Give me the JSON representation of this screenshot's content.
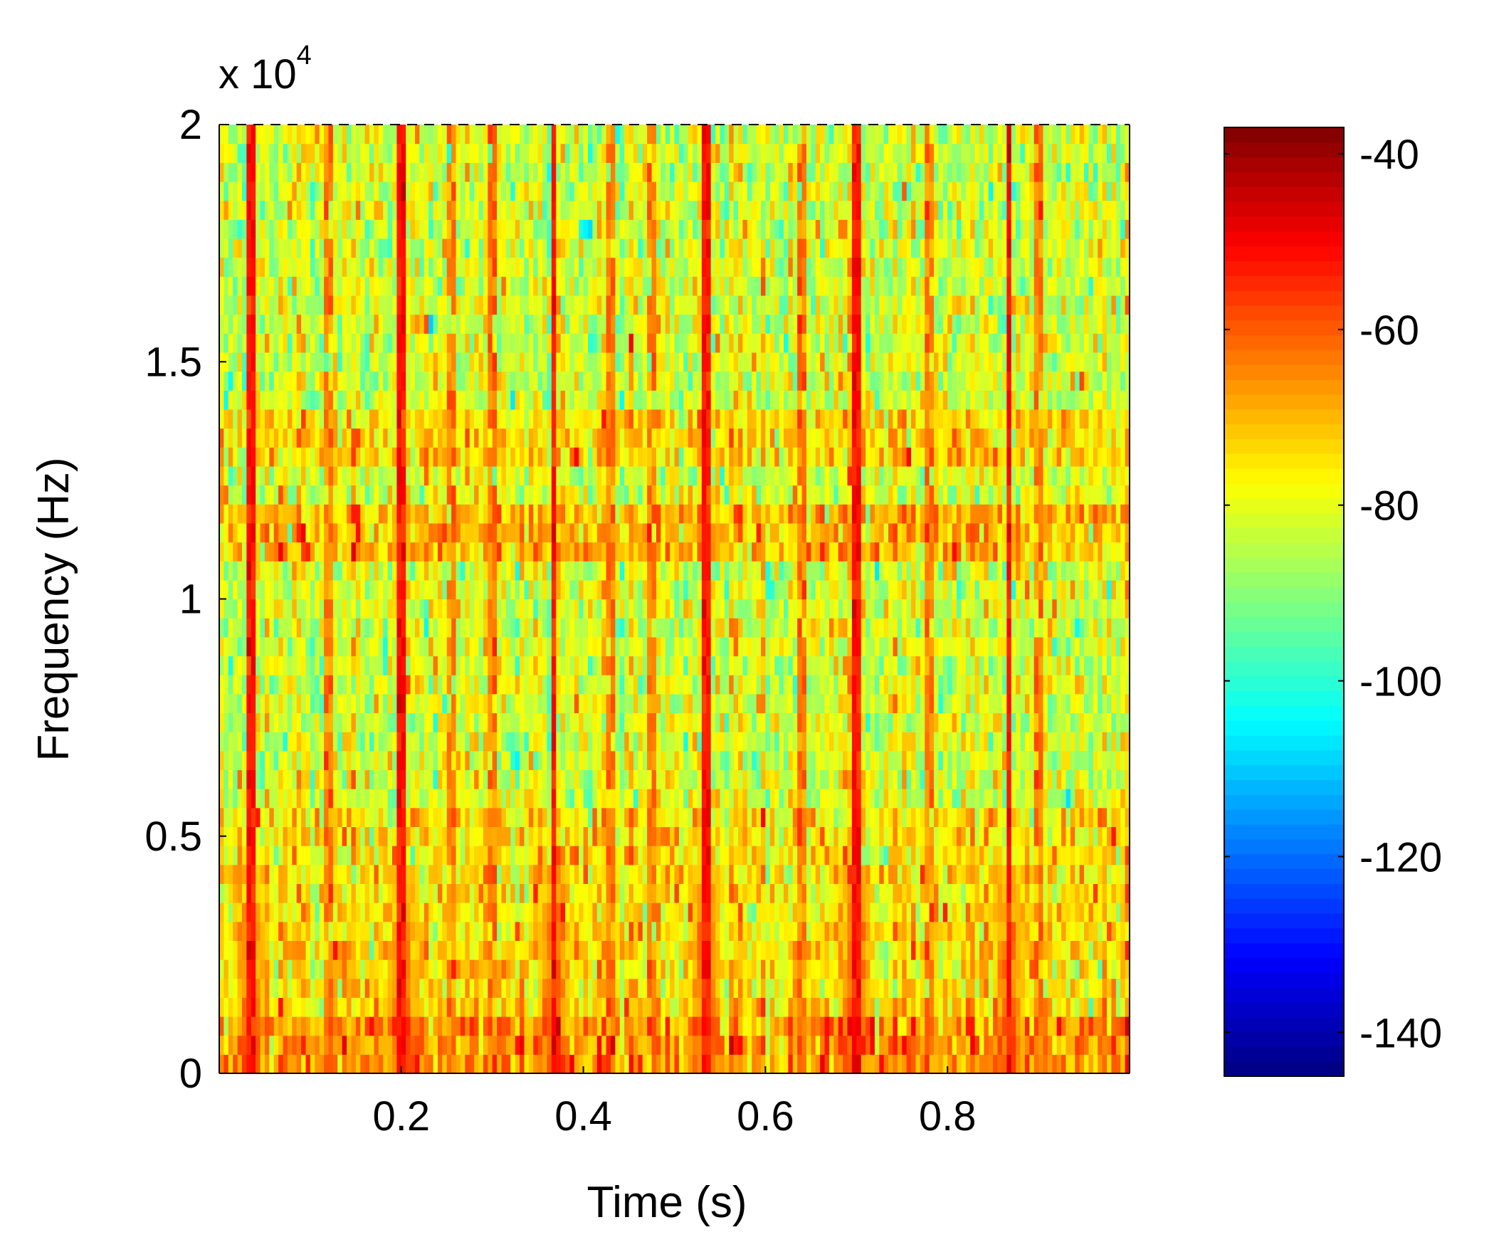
{
  "chart_data": {
    "type": "heatmap",
    "title": "",
    "xlabel": "Time (s)",
    "ylabel": "Frequency (Hz)",
    "xlim": [
      0,
      1.0
    ],
    "ylim": [
      0,
      20000
    ],
    "y_multiplier": {
      "base": "x 10",
      "exponent": "4"
    },
    "x_ticks": [
      {
        "value": 0.2,
        "label": "0.2"
      },
      {
        "value": 0.4,
        "label": "0.4"
      },
      {
        "value": 0.6,
        "label": "0.6"
      },
      {
        "value": 0.8,
        "label": "0.8"
      }
    ],
    "y_ticks": [
      {
        "value": 0,
        "label": "0"
      },
      {
        "value": 5000,
        "label": "0.5"
      },
      {
        "value": 10000,
        "label": "1"
      },
      {
        "value": 15000,
        "label": "1.5"
      },
      {
        "value": 20000,
        "label": "2"
      }
    ],
    "colorbar": {
      "range": [
        -145,
        -37
      ],
      "colormap": "jet",
      "ticks": [
        {
          "value": -40,
          "label": "-40"
        },
        {
          "value": -60,
          "label": "-60"
        },
        {
          "value": -80,
          "label": "-80"
        },
        {
          "value": -100,
          "label": "-100"
        },
        {
          "value": -120,
          "label": "-120"
        },
        {
          "value": -140,
          "label": "-140"
        }
      ]
    },
    "grid": {
      "time_bins": 200,
      "freq_bins": 50,
      "background_level_dB": -82,
      "low_freq_band": {
        "max_hz": 1200,
        "level_dB": -66
      },
      "mid_low_band": {
        "max_hz": 5500,
        "level_dB": -75
      },
      "band_11khz": {
        "min_hz": 10800,
        "max_hz": 11800,
        "level_dB": -70
      },
      "band_13khz": {
        "min_hz": 13000,
        "max_hz": 14000,
        "level_dB": -74
      },
      "transients_s": [
        0.034,
        0.2,
        0.368,
        0.534,
        0.7,
        0.868
      ],
      "transient_level_dB": -52,
      "transient_decay_hz": 4500,
      "minor_stripes_s": [
        0.12,
        0.255,
        0.3,
        0.43,
        0.475,
        0.64,
        0.78,
        0.9
      ],
      "minor_stripe_level_dB": -64,
      "noise_std_dB": 7
    }
  }
}
